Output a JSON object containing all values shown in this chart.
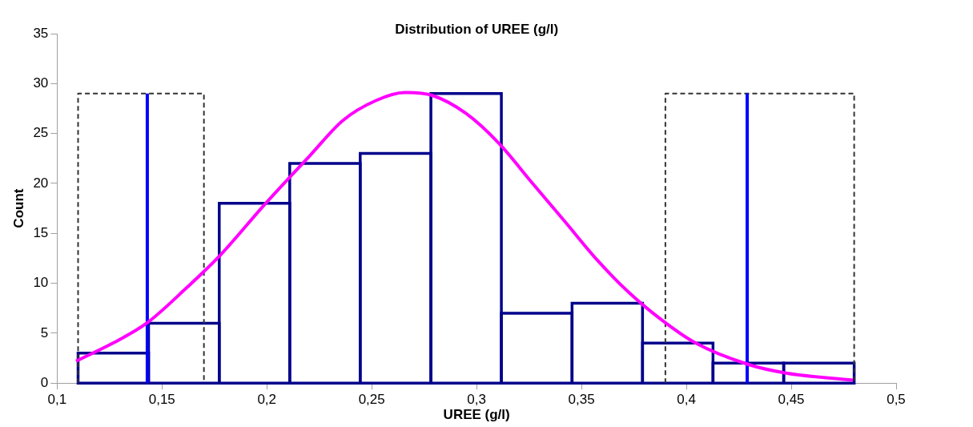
{
  "chart_data": {
    "type": "histogram",
    "title": "Distribution of UREE (g/l)",
    "xlabel": "UREE (g/l)",
    "ylabel": "Count",
    "bins": [
      0.11,
      0.1436,
      0.1773,
      0.2109,
      0.2445,
      0.2782,
      0.3118,
      0.3455,
      0.3791,
      0.4127,
      0.4464,
      0.48
    ],
    "values": [
      3,
      6,
      18,
      22,
      23,
      29,
      7,
      8,
      4,
      2,
      2
    ],
    "color": "#00008b",
    "series": [
      {
        "type": "line",
        "color": "#ff00ff",
        "line_style": "solid",
        "x": [
          0.109,
          0.1266,
          0.1427,
          0.162,
          0.1773,
          0.199,
          0.2206,
          0.2362,
          0.252,
          0.2656,
          0.279,
          0.295,
          0.3107,
          0.3263,
          0.342,
          0.3576,
          0.373,
          0.389,
          0.4045,
          0.429,
          0.4476,
          0.4794
        ],
        "values": [
          2.2,
          4.0,
          6.0,
          9.6,
          12.7,
          17.9,
          22.8,
          26.3,
          28.3,
          29.1,
          28.8,
          27.0,
          24.0,
          20.1,
          16.2,
          12.3,
          9.0,
          6.2,
          4.0,
          1.9,
          1.0,
          0.3
        ]
      },
      {
        "type": "line",
        "color": "#0000ff",
        "line_style": "solid",
        "x": [
          0.143,
          0.143
        ],
        "values": [
          0,
          29
        ]
      },
      {
        "type": "line",
        "color": "#0000ff",
        "line_style": "solid",
        "x": [
          0.429,
          0.429
        ],
        "values": [
          0,
          29
        ]
      },
      {
        "type": "line",
        "color": "#333333",
        "line_style": "dashed",
        "x": [
          0.11,
          0.11,
          0.17,
          0.17
        ],
        "values": [
          0,
          29,
          29,
          0
        ]
      },
      {
        "type": "line",
        "color": "#333333",
        "line_style": "dashed",
        "x": [
          0.39,
          0.39,
          0.48,
          0.48
        ],
        "values": [
          0,
          29,
          29,
          0
        ]
      }
    ],
    "xlim": [
      0.1,
      0.5
    ],
    "xticks": [
      {
        "value": 0.1,
        "label": "0,1"
      },
      {
        "value": 0.15,
        "label": "0,15"
      },
      {
        "value": 0.2,
        "label": "0,2"
      },
      {
        "value": 0.25,
        "label": "0,25"
      },
      {
        "value": 0.3,
        "label": "0,3"
      },
      {
        "value": 0.35,
        "label": "0,35"
      },
      {
        "value": 0.4,
        "label": "0,4"
      },
      {
        "value": 0.45,
        "label": "0,45"
      },
      {
        "value": 0.5,
        "label": "0,5"
      }
    ],
    "ylim": [
      0,
      35
    ],
    "yticks": [
      0,
      5,
      10,
      15,
      20,
      25,
      30,
      35
    ],
    "grid": false,
    "legend": false,
    "marker": "none"
  }
}
